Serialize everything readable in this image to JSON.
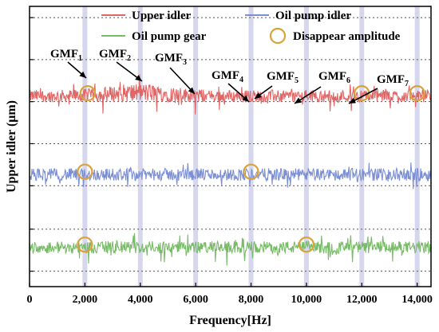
{
  "chart_data": {
    "type": "line",
    "title": "",
    "xlabel": "Frequency[Hz]",
    "ylabel": "Upper idler (μm)",
    "xlim": [
      0,
      14500
    ],
    "x_ticks": [
      0,
      2000,
      4000,
      6000,
      8000,
      10000,
      12000,
      14000
    ],
    "x_tick_labels": [
      "0",
      "2,000",
      "4,000",
      "6,000",
      "8,000",
      "10,000",
      "12,000",
      "14,000"
    ],
    "grid": "horizontal dotted",
    "legend_position": "top",
    "series": [
      {
        "name": "Upper idler",
        "color": "#e06666",
        "baseline_level": 0.68
      },
      {
        "name": "Oil pump idler",
        "color": "#7b8fd4",
        "baseline_level": 0.4
      },
      {
        "name": "Oil pump gear",
        "color": "#77bb66",
        "baseline_level": 0.14
      }
    ],
    "disappear_amplitude": {
      "name": "Disappear amplitude",
      "color": "#d9a23a",
      "markers": [
        {
          "series": "Upper idler",
          "x": 2100
        },
        {
          "series": "Upper idler",
          "x": 12000
        },
        {
          "series": "Upper idler",
          "x": 14000
        },
        {
          "series": "Oil pump idler",
          "x": 2000
        },
        {
          "series": "Oil pump idler",
          "x": 8000
        },
        {
          "series": "Oil pump gear",
          "x": 2000
        },
        {
          "series": "Oil pump gear",
          "x": 10000
        }
      ]
    },
    "gmf_lines": [
      {
        "base": "GMF",
        "sub": "1",
        "x": 2000
      },
      {
        "base": "GMF",
        "sub": "2",
        "x": 4000
      },
      {
        "base": "GMF",
        "sub": "3",
        "x": 6000
      },
      {
        "base": "GMF",
        "sub": "4",
        "x": 8000
      },
      {
        "base": "GMF",
        "sub": "5",
        "x": 10000
      },
      {
        "base": "GMF",
        "sub": "6",
        "x": 12000
      },
      {
        "base": "GMF",
        "sub": "7",
        "x": 14000
      }
    ],
    "gmf_line_color": "#c8c8e6"
  }
}
